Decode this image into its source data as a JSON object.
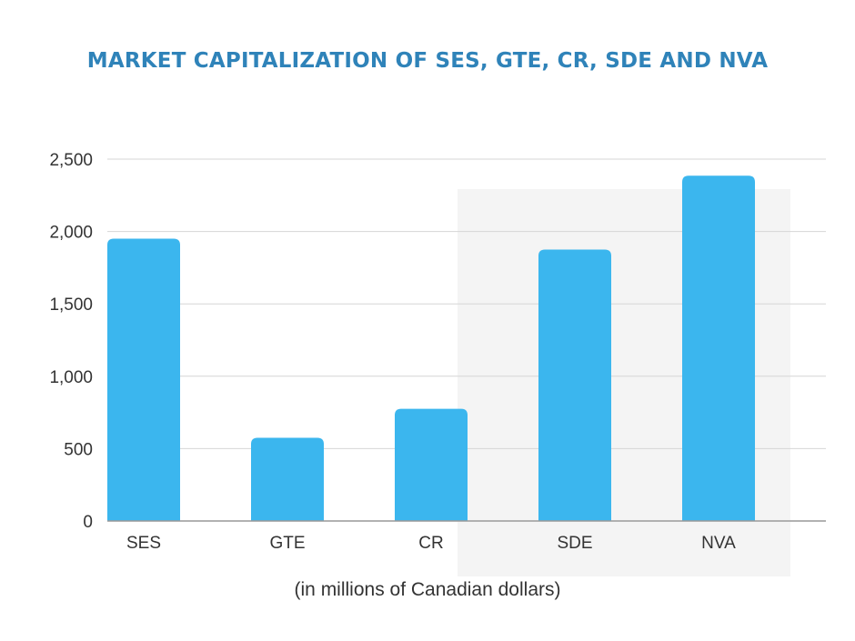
{
  "colors": {
    "title": "#2f83b9",
    "bar": "#3bb6ee",
    "grid": "#d6d6d6",
    "axis": "#999999",
    "shade": "#f4f4f4",
    "text": "#333333"
  },
  "chart_data": {
    "type": "bar",
    "title": "MARKET CAPITALIZATION OF SES, GTE, CR, SDE AND NVA",
    "xlabel": "(in millions of Canadian dollars)",
    "ylabel": "",
    "categories": [
      "SES",
      "GTE",
      "CR",
      "SDE",
      "NVA"
    ],
    "values": [
      1950,
      575,
      775,
      1875,
      2385
    ],
    "ylim": [
      0,
      2500
    ],
    "yticks": [
      0,
      500,
      1000,
      1500,
      2000,
      2500
    ],
    "ytick_labels": [
      "0",
      "500",
      "1,000",
      "1,500",
      "2,000",
      "2,500"
    ],
    "grid": true,
    "legend": "none"
  }
}
